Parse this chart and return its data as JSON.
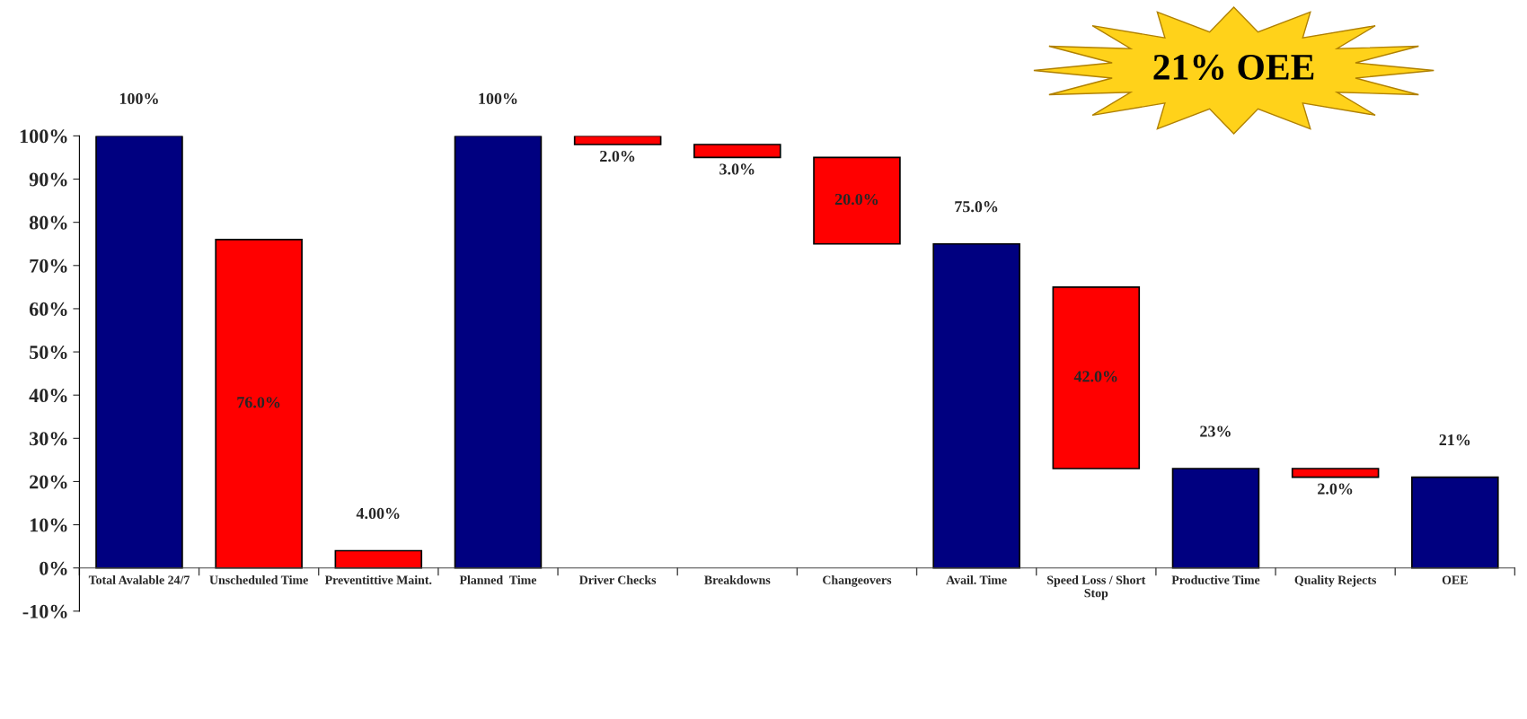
{
  "chart_data": {
    "type": "bar",
    "categories": [
      "Total Avalable 24/7",
      "Unscheduled Time",
      "Preventittive Maint.",
      "Planned  Time",
      "Driver Checks",
      "Breakdowns",
      "Changeovers",
      "Avail. Time",
      "Speed Loss / Short\nStop",
      "Productive Time",
      "Quality Rejects",
      "OEE"
    ],
    "values": [
      100,
      76,
      4,
      100,
      2,
      3,
      20,
      75,
      42,
      23,
      2,
      21
    ],
    "base": [
      0,
      0,
      0,
      0,
      98,
      95,
      75,
      0,
      23,
      0,
      21,
      0
    ],
    "colors": [
      "#000080",
      "#ff0000",
      "#ff0000",
      "#000080",
      "#ff0000",
      "#ff0000",
      "#ff0000",
      "#000080",
      "#ff0000",
      "#000080",
      "#ff0000",
      "#000080"
    ],
    "value_labels": [
      "100%",
      "76.0%",
      "4.00%",
      "100%",
      "2.0%",
      "3.0%",
      "20.0%",
      "75.0%",
      "42.0%",
      "23%",
      "2.0%",
      "21%"
    ],
    "ylim": [
      -10,
      100
    ],
    "yticks": [
      {
        "value": -10,
        "label": "-10%"
      },
      {
        "value": 0,
        "label": "0%"
      },
      {
        "value": 10,
        "label": "10%"
      },
      {
        "value": 20,
        "label": "20%"
      },
      {
        "value": 30,
        "label": "30%"
      },
      {
        "value": 40,
        "label": "40%"
      },
      {
        "value": 50,
        "label": "50%"
      },
      {
        "value": 60,
        "label": "60%"
      },
      {
        "value": 70,
        "label": "70%"
      },
      {
        "value": 80,
        "label": "80%"
      },
      {
        "value": 90,
        "label": "90%"
      },
      {
        "value": 100,
        "label": "100%"
      }
    ],
    "grid": false,
    "annotations": [
      "21% OEE"
    ]
  }
}
